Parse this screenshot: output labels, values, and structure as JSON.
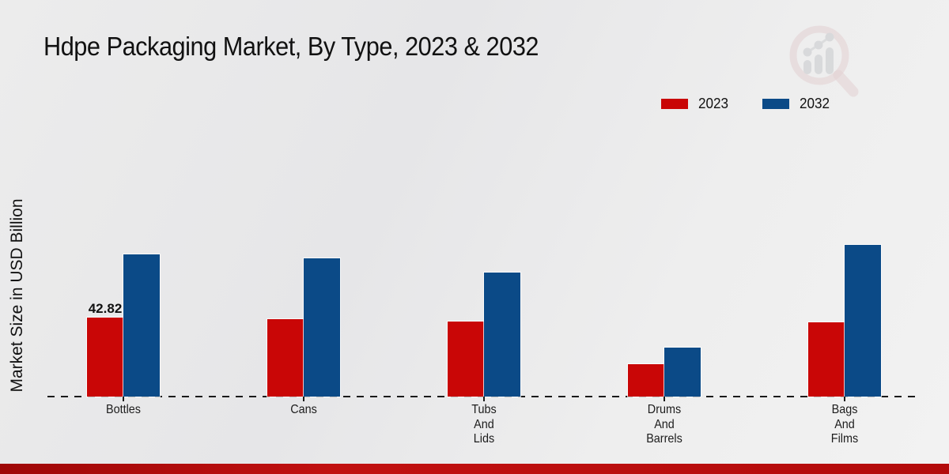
{
  "header": {
    "title": "Hdpe Packaging Market, By Type, 2023 & 2032"
  },
  "y_axis_label": "Market Size in USD Billion",
  "legend": {
    "items": [
      {
        "label": "2023",
        "color": "#c90606"
      },
      {
        "label": "2032",
        "color": "#0b4a87"
      }
    ]
  },
  "colors": {
    "series_2023": "#c90606",
    "series_2032": "#0b4a87",
    "axis": "#1a1a1a",
    "bottom_strip": "#b30b0b",
    "watermark_ring": "#d9b8ba",
    "watermark_bars": "#c4c6c9"
  },
  "chart_data": {
    "type": "bar",
    "title": "Hdpe Packaging Market, By Type, 2023 & 2032",
    "xlabel": "",
    "ylabel": "Market Size in USD Billion",
    "categories": [
      "Bottles",
      "Cans",
      "Tubs And Lids",
      "Drums And Barrels",
      "Bags And Films"
    ],
    "category_label_lines": [
      [
        "Bottles"
      ],
      [
        "Cans"
      ],
      [
        "Tubs",
        "And",
        "Lids"
      ],
      [
        "Drums",
        "And",
        "Barrels"
      ],
      [
        "Bags",
        "And",
        "Films"
      ]
    ],
    "series": [
      {
        "name": "2023",
        "color": "#c90606",
        "values": [
          42.82,
          42.2,
          41.0,
          17.5,
          40.6
        ],
        "data_labels": [
          "42.82",
          null,
          null,
          null,
          null
        ]
      },
      {
        "name": "2032",
        "color": "#0b4a87",
        "values": [
          77.5,
          75.4,
          67.5,
          26.8,
          82.5
        ],
        "data_labels": [
          null,
          null,
          null,
          null,
          null
        ]
      }
    ],
    "ylim": [
      0,
      86
    ],
    "grid": false,
    "legend_position": "top-right",
    "baseline_style": "dashed"
  }
}
